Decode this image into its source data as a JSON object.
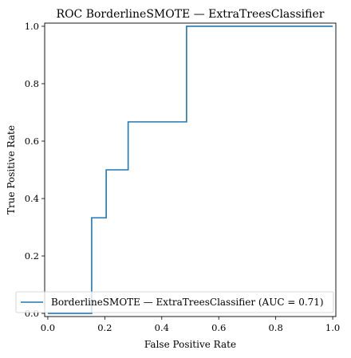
{
  "chart_data": {
    "type": "line",
    "title": "ROC BorderlineSMOTE — ExtraTreesClassifier",
    "xlabel": "False Positive Rate",
    "ylabel": "True Positive Rate",
    "xlim": [
      0,
      1
    ],
    "ylim": [
      0,
      1
    ],
    "x_ticks": [
      "0.0",
      "0.2",
      "0.4",
      "0.6",
      "0.8",
      "1.0"
    ],
    "y_ticks": [
      "0.0",
      "0.2",
      "0.4",
      "0.6",
      "0.8",
      "1.0"
    ],
    "grid": false,
    "legend_position": "lower-right",
    "series": [
      {
        "name": "BorderlineSMOTE — ExtraTreesClassifier (AUC = 0.71)",
        "color": "#1f77b4",
        "x": [
          0.0,
          0.0,
          0.154,
          0.154,
          0.205,
          0.205,
          0.282,
          0.282,
          0.487,
          0.487,
          1.0
        ],
        "y": [
          0.0,
          0.0,
          0.0,
          0.333,
          0.333,
          0.5,
          0.5,
          0.667,
          0.667,
          1.0,
          1.0
        ]
      }
    ]
  }
}
